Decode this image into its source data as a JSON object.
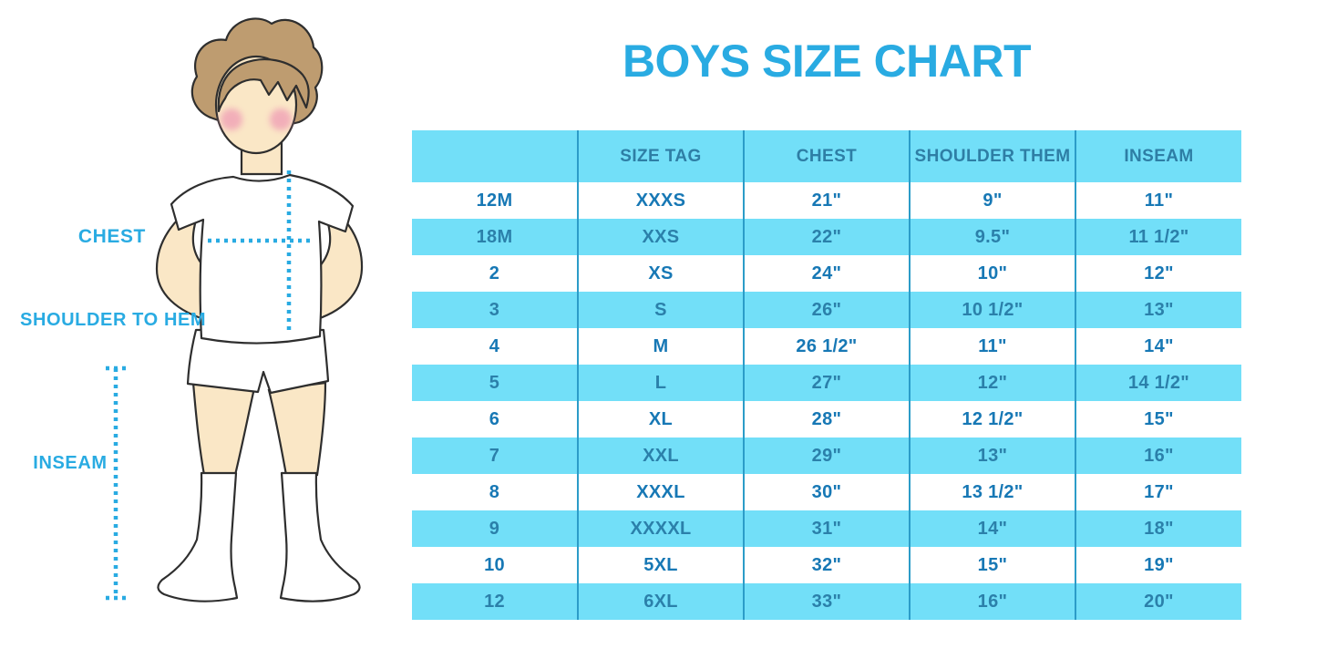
{
  "title": "BOYS SIZE CHART",
  "colors": {
    "accent_blue": "#29ABE2",
    "band_blue": "#72DFF8",
    "grid_line": "#2C9CC8",
    "header_text": "#2E7EA5",
    "white_row_text": "#1778B5",
    "blue_row_text": "#2B80AA",
    "skin": "#FAE7C6",
    "hair": "#BE9C70",
    "cheek": "#F0A0B6"
  },
  "figure": {
    "description": "illustrated boy in white tee, shorts and knee socks with dotted measurement lines",
    "labels": {
      "chest": "CHEST",
      "shoulder_to_hem": "SHOULDER TO HEM",
      "inseam": "INSEAM"
    }
  },
  "table": {
    "headers": [
      "",
      "SIZE TAG",
      "CHEST",
      "SHOULDER THEM",
      "INSEAM"
    ],
    "rows": [
      [
        "12M",
        "XXXS",
        "21\"",
        "9\"",
        "11\""
      ],
      [
        "18M",
        "XXS",
        "22\"",
        "9.5\"",
        "11 1/2\""
      ],
      [
        "2",
        "XS",
        "24\"",
        "10\"",
        "12\""
      ],
      [
        "3",
        "S",
        "26\"",
        "10 1/2\"",
        "13\""
      ],
      [
        "4",
        "M",
        "26 1/2\"",
        "11\"",
        "14\""
      ],
      [
        "5",
        "L",
        "27\"",
        "12\"",
        "14 1/2\""
      ],
      [
        "6",
        "XL",
        "28\"",
        "12 1/2\"",
        "15\""
      ],
      [
        "7",
        "XXL",
        "29\"",
        "13\"",
        "16\""
      ],
      [
        "8",
        "XXXL",
        "30\"",
        "13 1/2\"",
        "17\""
      ],
      [
        "9",
        "XXXXL",
        "31\"",
        "14\"",
        "18\""
      ],
      [
        "10",
        "5XL",
        "32\"",
        "15\"",
        "19\""
      ],
      [
        "12",
        "6XL",
        "33\"",
        "16\"",
        "20\""
      ]
    ]
  },
  "chart_data": {
    "type": "table",
    "title": "BOYS SIZE CHART",
    "columns": [
      "",
      "SIZE TAG",
      "CHEST",
      "SHOULDER THEM",
      "INSEAM"
    ],
    "rows": [
      [
        "12M",
        "XXXS",
        "21\"",
        "9\"",
        "11\""
      ],
      [
        "18M",
        "XXS",
        "22\"",
        "9.5\"",
        "11 1/2\""
      ],
      [
        "2",
        "XS",
        "24\"",
        "10\"",
        "12\""
      ],
      [
        "3",
        "S",
        "26\"",
        "10 1/2\"",
        "13\""
      ],
      [
        "4",
        "M",
        "26 1/2\"",
        "11\"",
        "14\""
      ],
      [
        "5",
        "L",
        "27\"",
        "12\"",
        "14 1/2\""
      ],
      [
        "6",
        "XL",
        "28\"",
        "12 1/2\"",
        "15\""
      ],
      [
        "7",
        "XXL",
        "29\"",
        "13\"",
        "16\""
      ],
      [
        "8",
        "XXXL",
        "30\"",
        "13 1/2\"",
        "17\""
      ],
      [
        "9",
        "XXXXL",
        "31\"",
        "14\"",
        "18\""
      ],
      [
        "10",
        "5XL",
        "32\"",
        "15\"",
        "19\""
      ],
      [
        "12",
        "6XL",
        "33\"",
        "16\"",
        "20\""
      ]
    ],
    "layout": {
      "row_striping": [
        "white",
        "#72DFF8"
      ],
      "header_fill": "#72DFF8",
      "grid": "vertical-only"
    }
  }
}
